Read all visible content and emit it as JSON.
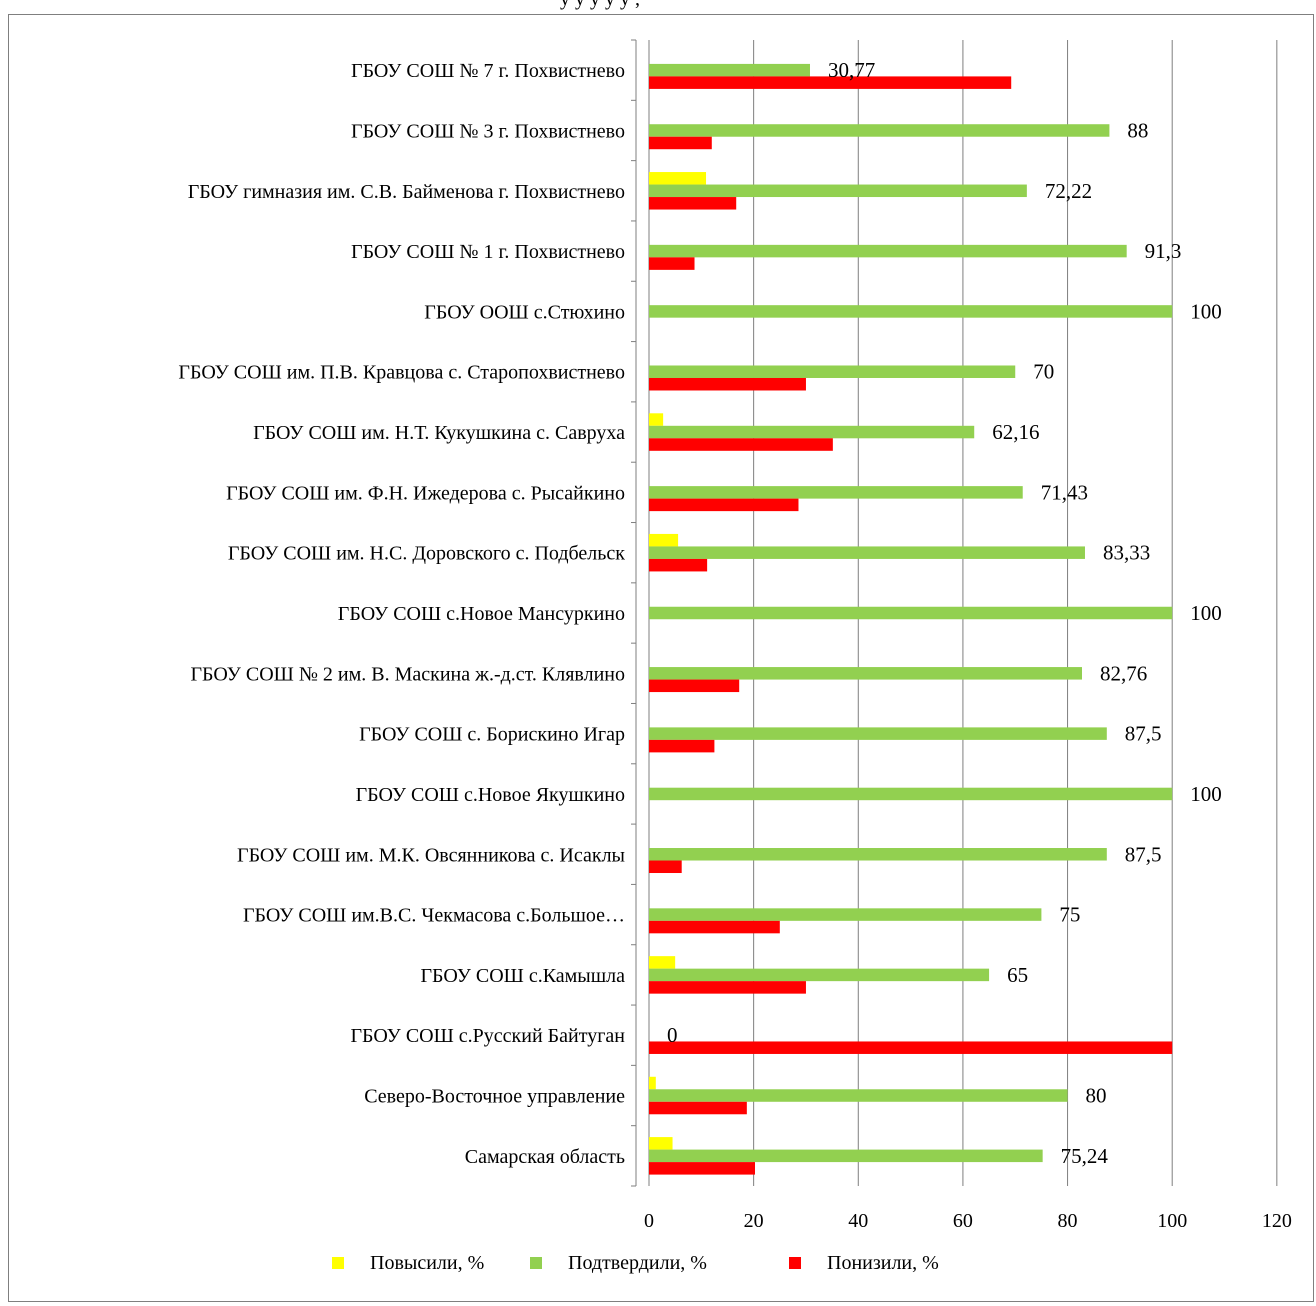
{
  "chart_data": {
    "type": "bar",
    "orientation": "horizontal",
    "categories": [
      "ГБОУ СОШ № 7 г. Похвистнево",
      "ГБОУ СОШ № 3 г. Похвистнево",
      "ГБОУ гимназия им. С.В. Байменова г. Похвистнево",
      "ГБОУ СОШ № 1 г. Похвистнево",
      "ГБОУ ООШ с.Стюхино",
      "ГБОУ СОШ им. П.В. Кравцова с. Старопохвистнево",
      "ГБОУ СОШ им. Н.Т. Кукушкина с. Савруха",
      "ГБОУ СОШ им. Ф.Н. Ижедерова с. Рысайкино",
      "ГБОУ СОШ им. Н.С. Доровского с. Подбельск",
      "ГБОУ СОШ с.Новое Мансуркино",
      "ГБОУ СОШ № 2 им. В. Маскина ж.-д.ст. Клявлино",
      "ГБОУ СОШ с. Борискино Игар",
      "ГБОУ СОШ с.Новое Якушкино",
      "ГБОУ СОШ им. М.К. Овсянникова с. Исаклы",
      "ГБОУ СОШ им.В.С. Чекмасова с.Большое…",
      "ГБОУ СОШ с.Камышла",
      "ГБОУ СОШ с.Русский Байтуган",
      "Северо-Восточное управление",
      "Самарская область"
    ],
    "series": [
      {
        "name": "Повысили, %",
        "color": "#ffff00",
        "values": [
          0,
          0,
          10.9,
          0,
          0,
          0,
          2.7,
          0,
          5.56,
          0,
          0,
          0,
          0,
          0,
          0,
          5,
          0,
          1.3,
          4.5
        ]
      },
      {
        "name": "Подтвердили, %",
        "color": "#92d050",
        "values": [
          30.77,
          88,
          72.22,
          91.3,
          100,
          70,
          62.16,
          71.43,
          83.33,
          100,
          82.76,
          87.5,
          100,
          87.5,
          75,
          65,
          0,
          80,
          75.24
        ]
      },
      {
        "name": "Понизили,  %",
        "color": "#ff0000",
        "values": [
          69.23,
          12,
          16.67,
          8.7,
          0,
          30,
          35.14,
          28.57,
          11.11,
          0,
          17.24,
          12.5,
          0,
          6.25,
          25,
          30,
          100,
          18.7,
          20.26
        ]
      }
    ],
    "data_labels": [
      "30,77",
      "88",
      "72,22",
      "91,3",
      "100",
      "70",
      "62,16",
      "71,43",
      "83,33",
      "100",
      "82,76",
      "87,5",
      "100",
      "87,5",
      "75",
      "65",
      "0",
      "80",
      "75,24"
    ],
    "x_ticks": [
      "0",
      "20",
      "40",
      "60",
      "80",
      "100",
      "120"
    ],
    "xlim": [
      0,
      120
    ],
    "grid": true,
    "legend_position": "bottom",
    "top_text_fragment": "у                 у                     у       у  у              ,"
  }
}
